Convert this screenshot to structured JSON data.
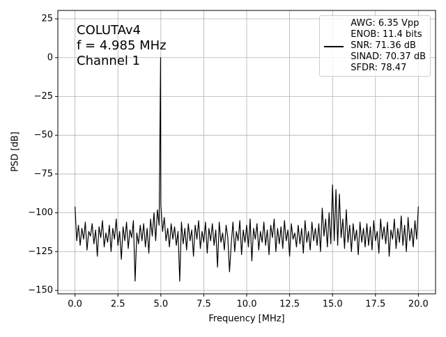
{
  "chart_data": {
    "type": "line",
    "annotation": [
      "COLUTAv4",
      "f = 4.985 MHz",
      "Channel 1"
    ],
    "x_label": "Frequency [MHz]",
    "y_label": "PSD [dB]",
    "xlim": [
      -1.0,
      21.0
    ],
    "ylim": [
      -152.2,
      30.4
    ],
    "xticks": [
      {
        "value": 0,
        "label": "0.0"
      },
      2.5,
      {
        "value": 5,
        "label": "5.0"
      },
      7.5,
      {
        "value": 10,
        "label": "10.0"
      },
      12.5,
      {
        "value": 15,
        "label": "15.0"
      },
      17.5,
      {
        "value": 20,
        "label": "20.0"
      }
    ],
    "yticks": [
      25,
      0,
      {
        "value": -25,
        "label": "−25"
      },
      {
        "value": -50,
        "label": "−50"
      },
      {
        "value": -75,
        "label": "−75"
      },
      {
        "value": -100,
        "label": "−100"
      },
      {
        "value": -125,
        "label": "−125"
      },
      {
        "value": -150,
        "label": "−150"
      }
    ],
    "grid": true,
    "legend": "upper right",
    "x": [
      0,
      0.1,
      0.2,
      0.3,
      0.4,
      0.5,
      0.6,
      0.7,
      0.8,
      0.9,
      1,
      1.1,
      1.2,
      1.3,
      1.4,
      1.5,
      1.6,
      1.7,
      1.8,
      1.9,
      2,
      2.1,
      2.2,
      2.3,
      2.4,
      2.5,
      2.6,
      2.7,
      2.8,
      2.9,
      3,
      3.1,
      3.2,
      3.3,
      3.4,
      3.5,
      3.6,
      3.7,
      3.8,
      3.9,
      4,
      4.1,
      4.2,
      4.3,
      4.4,
      4.5,
      4.6,
      4.7,
      4.8,
      4.9,
      4.985,
      5,
      5.1,
      5.2,
      5.3,
      5.4,
      5.5,
      5.6,
      5.7,
      5.8,
      5.9,
      6,
      6.1,
      6.2,
      6.3,
      6.4,
      6.5,
      6.6,
      6.7,
      6.8,
      6.9,
      7,
      7.1,
      7.2,
      7.3,
      7.4,
      7.5,
      7.6,
      7.7,
      7.8,
      7.9,
      8,
      8.1,
      8.2,
      8.3,
      8.4,
      8.5,
      8.6,
      8.7,
      8.8,
      8.9,
      9,
      9.1,
      9.2,
      9.3,
      9.4,
      9.5,
      9.6,
      9.7,
      9.8,
      9.9,
      10,
      10.1,
      10.2,
      10.3,
      10.4,
      10.5,
      10.6,
      10.7,
      10.8,
      10.9,
      11,
      11.1,
      11.2,
      11.3,
      11.4,
      11.5,
      11.6,
      11.7,
      11.8,
      11.9,
      12,
      12.1,
      12.2,
      12.3,
      12.4,
      12.5,
      12.6,
      12.7,
      12.8,
      12.9,
      13,
      13.1,
      13.2,
      13.3,
      13.4,
      13.5,
      13.6,
      13.7,
      13.8,
      13.9,
      14,
      14.1,
      14.2,
      14.3,
      14.4,
      14.5,
      14.6,
      14.7,
      14.8,
      14.9,
      15,
      15.1,
      15.2,
      15.3,
      15.4,
      15.5,
      15.6,
      15.7,
      15.8,
      15.9,
      16,
      16.1,
      16.2,
      16.3,
      16.4,
      16.5,
      16.6,
      16.7,
      16.8,
      16.9,
      17,
      17.1,
      17.2,
      17.3,
      17.4,
      17.5,
      17.6,
      17.7,
      17.8,
      17.9,
      18,
      18.1,
      18.2,
      18.3,
      18.4,
      18.5,
      18.6,
      18.7,
      18.8,
      18.9,
      19,
      19.1,
      19.2,
      19.3,
      19.4,
      19.5,
      19.6,
      19.7,
      19.8,
      19.9,
      20
    ],
    "series": [
      {
        "name": "AWG: 6.35 Vpp\nENOB: 11.4 bits\nSNR: 71.36 dB\nSINAD: 70.37 dB\nSFDR: 78.47",
        "color": "#000000",
        "values": [
          -96,
          -118,
          -108,
          -121,
          -110,
          -117,
          -106,
          -124,
          -112,
          -115,
          -107,
          -120,
          -111,
          -128,
          -109,
          -116,
          -105,
          -122,
          -113,
          -119,
          -108,
          -125,
          -110,
          -117,
          -104,
          -121,
          -112,
          -130,
          -109,
          -118,
          -106,
          -123,
          -111,
          -116,
          -105,
          -144,
          -113,
          -120,
          -108,
          -118,
          -107,
          -122,
          -110,
          -126,
          -104,
          -115,
          -100,
          -118,
          -98,
          -108,
          0,
          -95,
          -112,
          -103,
          -118,
          -110,
          -122,
          -107,
          -117,
          -109,
          -121,
          -112,
          -144,
          -106,
          -120,
          -110,
          -124,
          -107,
          -118,
          -111,
          -128,
          -108,
          -117,
          -105,
          -123,
          -112,
          -119,
          -106,
          -126,
          -110,
          -118,
          -107,
          -121,
          -111,
          -135,
          -106,
          -119,
          -113,
          -124,
          -108,
          -116,
          -138,
          -120,
          -106,
          -125,
          -112,
          -118,
          -105,
          -127,
          -111,
          -119,
          -108,
          -122,
          -104,
          -131,
          -110,
          -117,
          -107,
          -124,
          -112,
          -119,
          -106,
          -121,
          -111,
          -127,
          -108,
          -116,
          -104,
          -125,
          -110,
          -120,
          -109,
          -123,
          -105,
          -118,
          -111,
          -128,
          -107,
          -117,
          -113,
          -122,
          -108,
          -120,
          -110,
          -126,
          -105,
          -119,
          -112,
          -124,
          -106,
          -118,
          -110,
          -121,
          -107,
          -125,
          -97,
          -115,
          -104,
          -122,
          -100,
          -120,
          -82,
          -118,
          -85,
          -121,
          -88,
          -116,
          -104,
          -123,
          -98,
          -119,
          -108,
          -125,
          -107,
          -118,
          -111,
          -127,
          -106,
          -119,
          -110,
          -122,
          -107,
          -121,
          -109,
          -124,
          -105,
          -118,
          -112,
          -126,
          -104,
          -117,
          -109,
          -120,
          -106,
          -128,
          -111,
          -117,
          -104,
          -123,
          -110,
          -119,
          -102,
          -121,
          -108,
          -125,
          -103,
          -118,
          -110,
          -122,
          -105,
          -117,
          -96
        ]
      }
    ]
  }
}
